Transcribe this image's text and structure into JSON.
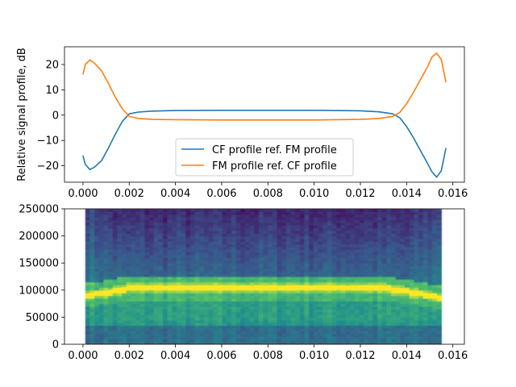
{
  "chart_data": [
    {
      "type": "line",
      "title": "",
      "xlabel": "",
      "ylabel": "Relative signal profile, dB",
      "xlim": [
        -0.0008,
        0.0165
      ],
      "ylim": [
        -26.5,
        27
      ],
      "xticks": [
        0.0,
        0.002,
        0.004,
        0.006,
        0.008,
        0.01,
        0.012,
        0.014,
        0.016
      ],
      "xtick_labels": [
        "0.000",
        "0.002",
        "0.004",
        "0.006",
        "0.008",
        "0.010",
        "0.012",
        "0.014",
        "0.016"
      ],
      "yticks": [
        -20,
        -10,
        0,
        10,
        20
      ],
      "ytick_labels": [
        "−20",
        "−10",
        "0",
        "10",
        "20"
      ],
      "legend_position": "lower-center",
      "series": [
        {
          "name": "CF profile ref. FM profile",
          "color": "#1f77b4",
          "x": [
            0.0,
            0.0001,
            0.0003,
            0.0005,
            0.0008,
            0.0011,
            0.0014,
            0.0017,
            0.002,
            0.0024,
            0.003,
            0.004,
            0.006,
            0.008,
            0.01,
            0.012,
            0.0128,
            0.0134,
            0.0137,
            0.014,
            0.0143,
            0.0146,
            0.0149,
            0.0151,
            0.0153,
            0.0155,
            0.0157
          ],
          "y": [
            -16,
            -19.5,
            -21.5,
            -20.5,
            -18,
            -13,
            -7.5,
            -2.5,
            0.5,
            1.2,
            1.6,
            1.8,
            1.9,
            1.9,
            1.9,
            1.7,
            1.3,
            0.5,
            -1,
            -4.5,
            -9,
            -14,
            -19,
            -22.5,
            -24.5,
            -22,
            -13
          ]
        },
        {
          "name": "FM profile ref. CF profile",
          "color": "#ff7f0e",
          "x": [
            0.0,
            0.0001,
            0.0003,
            0.0005,
            0.0008,
            0.0011,
            0.0014,
            0.0017,
            0.002,
            0.0024,
            0.003,
            0.004,
            0.006,
            0.008,
            0.01,
            0.012,
            0.0128,
            0.0134,
            0.0137,
            0.014,
            0.0143,
            0.0146,
            0.0149,
            0.0151,
            0.0153,
            0.0155,
            0.0157
          ],
          "y": [
            16,
            20,
            21.8,
            20.5,
            17.5,
            12.5,
            7,
            2.5,
            -0.5,
            -1.3,
            -1.7,
            -1.8,
            -1.9,
            -1.9,
            -1.9,
            -1.7,
            -1.3,
            -0.5,
            1,
            4.5,
            9,
            14,
            19,
            23,
            24.5,
            22,
            13
          ]
        }
      ]
    },
    {
      "type": "heatmap",
      "title": "",
      "xlabel": "",
      "ylabel": "",
      "xlim": [
        -0.0008,
        0.0165
      ],
      "ylim": [
        0,
        250000
      ],
      "xticks": [
        0.0,
        0.002,
        0.004,
        0.006,
        0.008,
        0.01,
        0.012,
        0.014,
        0.016
      ],
      "xtick_labels": [
        "0.000",
        "0.002",
        "0.004",
        "0.006",
        "0.008",
        "0.010",
        "0.012",
        "0.014",
        "0.016"
      ],
      "yticks": [
        0,
        50000,
        100000,
        150000,
        200000,
        250000
      ],
      "ytick_labels": [
        "0",
        "50000",
        "100000",
        "150000",
        "200000",
        "250000"
      ],
      "data_extent": {
        "x": [
          0.0001,
          0.0155
        ],
        "y": [
          0,
          250000
        ]
      },
      "colormap": "viridis",
      "ridge": {
        "description": "bright yellow frequency track",
        "x": [
          0.0001,
          0.001,
          0.002,
          0.013,
          0.014,
          0.0155
        ],
        "y": [
          90000,
          96000,
          104000,
          104000,
          98000,
          86000
        ]
      },
      "colors": [
        "#440154",
        "#3b528b",
        "#21918c",
        "#5ec962",
        "#fde725"
      ]
    }
  ]
}
